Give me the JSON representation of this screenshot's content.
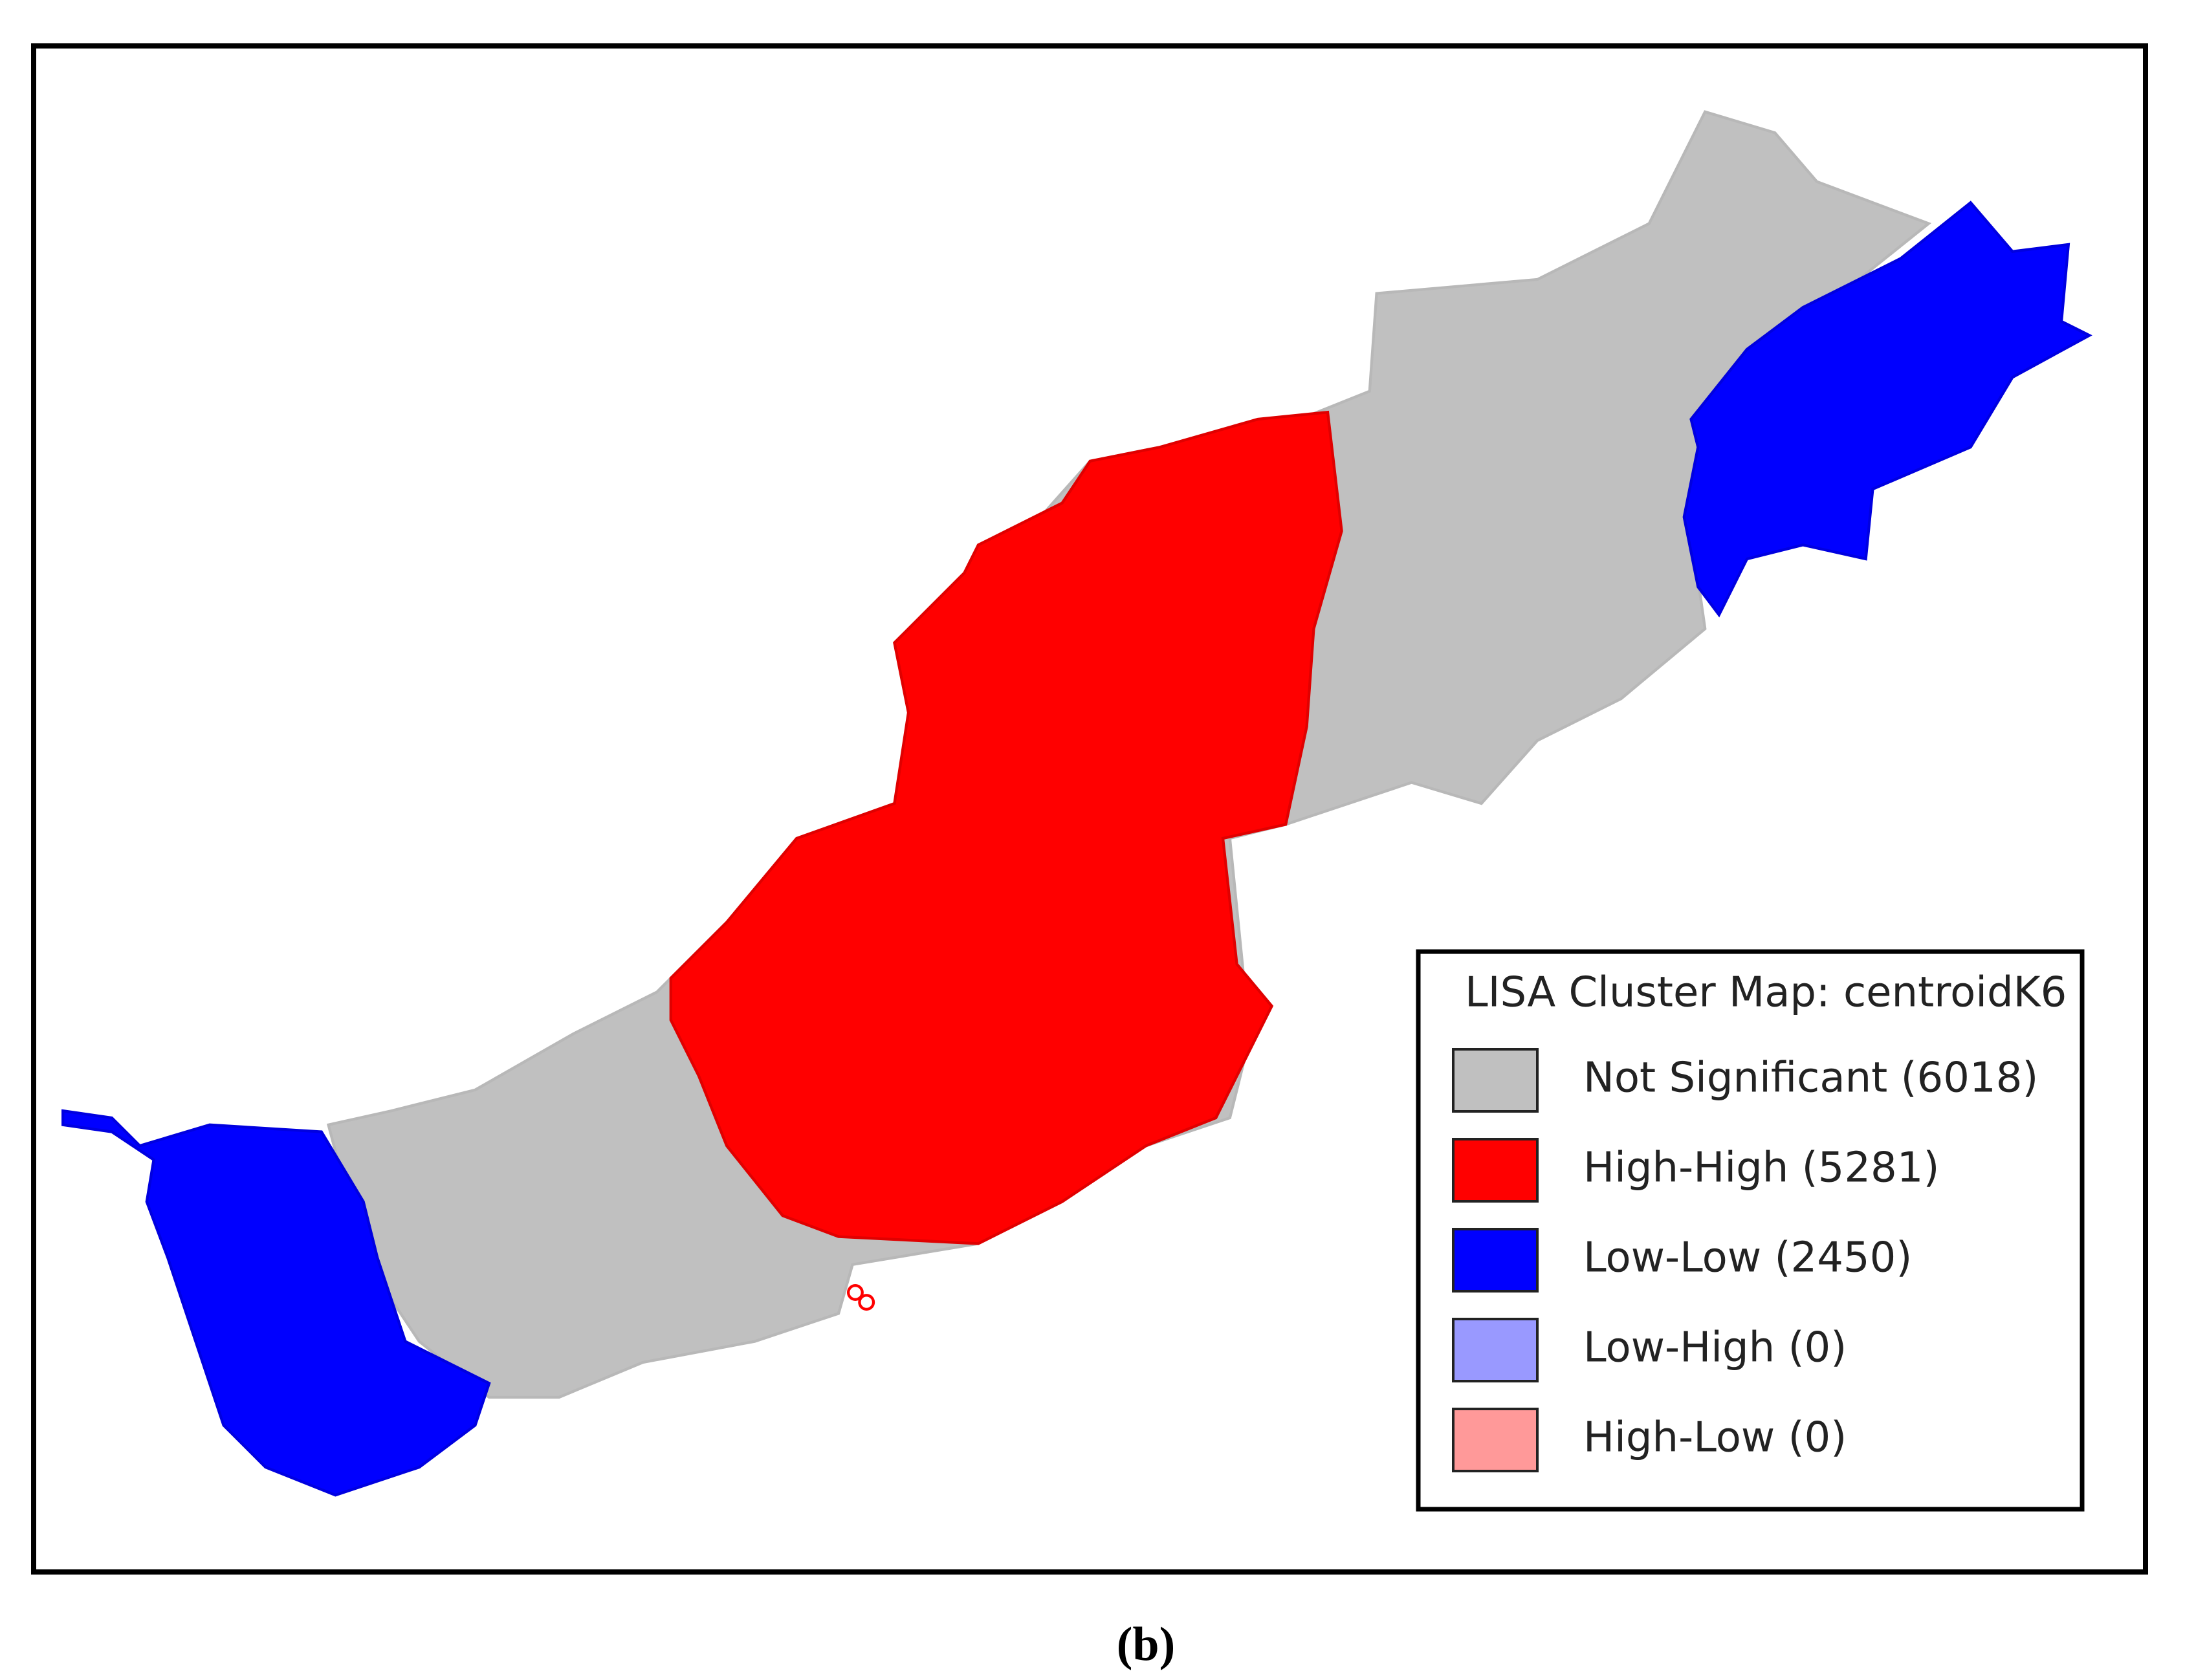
{
  "legend": {
    "title": "LISA Cluster Map: centroidK6",
    "items": [
      {
        "label": "Not Significant (6018)",
        "color": "#c0c0c0"
      },
      {
        "label": "High-High (5281)",
        "color": "#ff0000"
      },
      {
        "label": "Low-Low (2450)",
        "color": "#0000ff"
      },
      {
        "label": "Low-High (0)",
        "color": "#9999ff"
      },
      {
        "label": "High-Low (0)",
        "color": "#ff9999"
      }
    ]
  },
  "caption": "(b)"
}
